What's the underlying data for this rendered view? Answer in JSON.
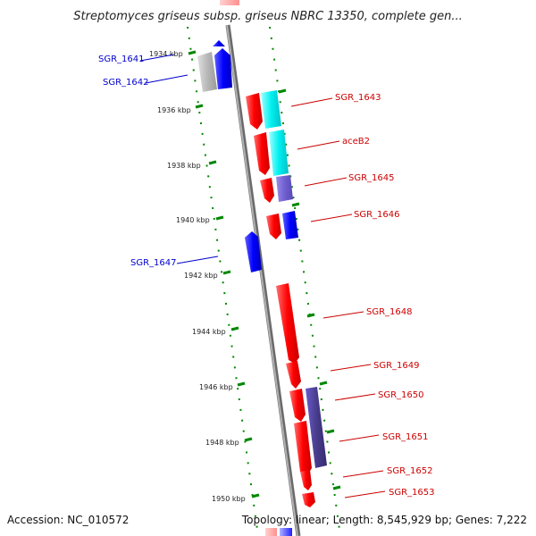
{
  "title": "Streptomyces griseus subsp. griseus NBRC 13350, complete gen...",
  "footer": {
    "accession": "Accession: NC_010572",
    "summary": "Topology: linear; Length: 8,545,929 bp; Genes: 7,222"
  },
  "colors": {
    "forward_strand": "#ff0000",
    "reverse_strand": "#0000ff",
    "forward_label": "#cc0000",
    "reverse_label": "#0000cc",
    "tick": "#008800",
    "backbone": "#888888"
  },
  "scale_ticks": [
    "1934 kbp",
    "1936 kbp",
    "1938 kbp",
    "1940 kbp",
    "1942 kbp",
    "1944 kbp",
    "1946 kbp",
    "1948 kbp",
    "1950 kbp"
  ],
  "genes": [
    {
      "name": "SGR_1641",
      "strand": "reverse"
    },
    {
      "name": "SGR_1642",
      "strand": "reverse"
    },
    {
      "name": "SGR_1643",
      "strand": "forward"
    },
    {
      "name": "aceB2",
      "strand": "forward"
    },
    {
      "name": "SGR_1645",
      "strand": "forward"
    },
    {
      "name": "SGR_1646",
      "strand": "forward"
    },
    {
      "name": "SGR_1647",
      "strand": "reverse"
    },
    {
      "name": "SGR_1648",
      "strand": "forward"
    },
    {
      "name": "SGR_1649",
      "strand": "forward"
    },
    {
      "name": "SGR_1650",
      "strand": "forward"
    },
    {
      "name": "SGR_1651",
      "strand": "forward"
    },
    {
      "name": "SGR_1652",
      "strand": "forward"
    },
    {
      "name": "SGR_1653",
      "strand": "forward"
    }
  ]
}
